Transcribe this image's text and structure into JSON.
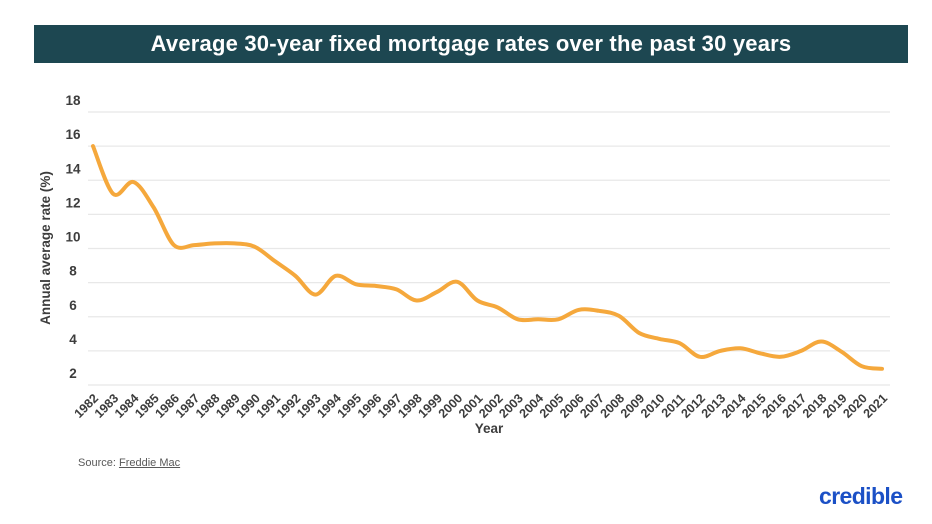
{
  "header": {
    "title": "Average 30-year fixed mortgage rates over the past 30 years",
    "background_color": "#1D4751",
    "text_color": "#FFFFFF"
  },
  "chart_data": {
    "type": "line",
    "title": "Average 30-year fixed mortgage rates over the past 30 years",
    "x": [
      "1982",
      "1983",
      "1984",
      "1985",
      "1986",
      "1987",
      "1988",
      "1989",
      "1990",
      "1991",
      "1992",
      "1993",
      "1994",
      "1995",
      "1996",
      "1997",
      "1998",
      "1999",
      "2000",
      "2001",
      "2002",
      "2003",
      "2004",
      "2005",
      "2006",
      "2007",
      "2008",
      "2009",
      "2010",
      "2011",
      "2012",
      "2013",
      "2014",
      "2015",
      "2016",
      "2017",
      "2018",
      "2019",
      "2020",
      "2021"
    ],
    "series": [
      {
        "name": "Annual average rate (%)",
        "values": [
          16.0,
          13.2,
          13.9,
          12.4,
          10.2,
          10.2,
          10.3,
          10.3,
          10.1,
          9.25,
          8.4,
          7.3,
          8.4,
          7.9,
          7.8,
          7.6,
          6.95,
          7.45,
          8.05,
          6.95,
          6.55,
          5.85,
          5.85,
          5.85,
          6.4,
          6.35,
          6.05,
          5.05,
          4.7,
          4.45,
          3.65,
          4.0,
          4.15,
          3.85,
          3.65,
          4.0,
          4.55,
          3.95,
          3.1,
          2.95
        ],
        "color": "#F5A83C"
      }
    ],
    "xlabel": "Year",
    "ylabel": "Annual average rate (%)",
    "ylim": [
      2,
      18
    ],
    "ytick_step": 2,
    "yticks": [
      2,
      4,
      6,
      8,
      10,
      12,
      14,
      16,
      18
    ],
    "grid": true,
    "grid_color": "#E8E8E8",
    "legend_position": "none",
    "line_smoothing": true
  },
  "source": {
    "prefix": "Source: ",
    "link_label": "Freddie Mac"
  },
  "branding": {
    "logo_text": "credible",
    "color": "#1B50C6"
  }
}
